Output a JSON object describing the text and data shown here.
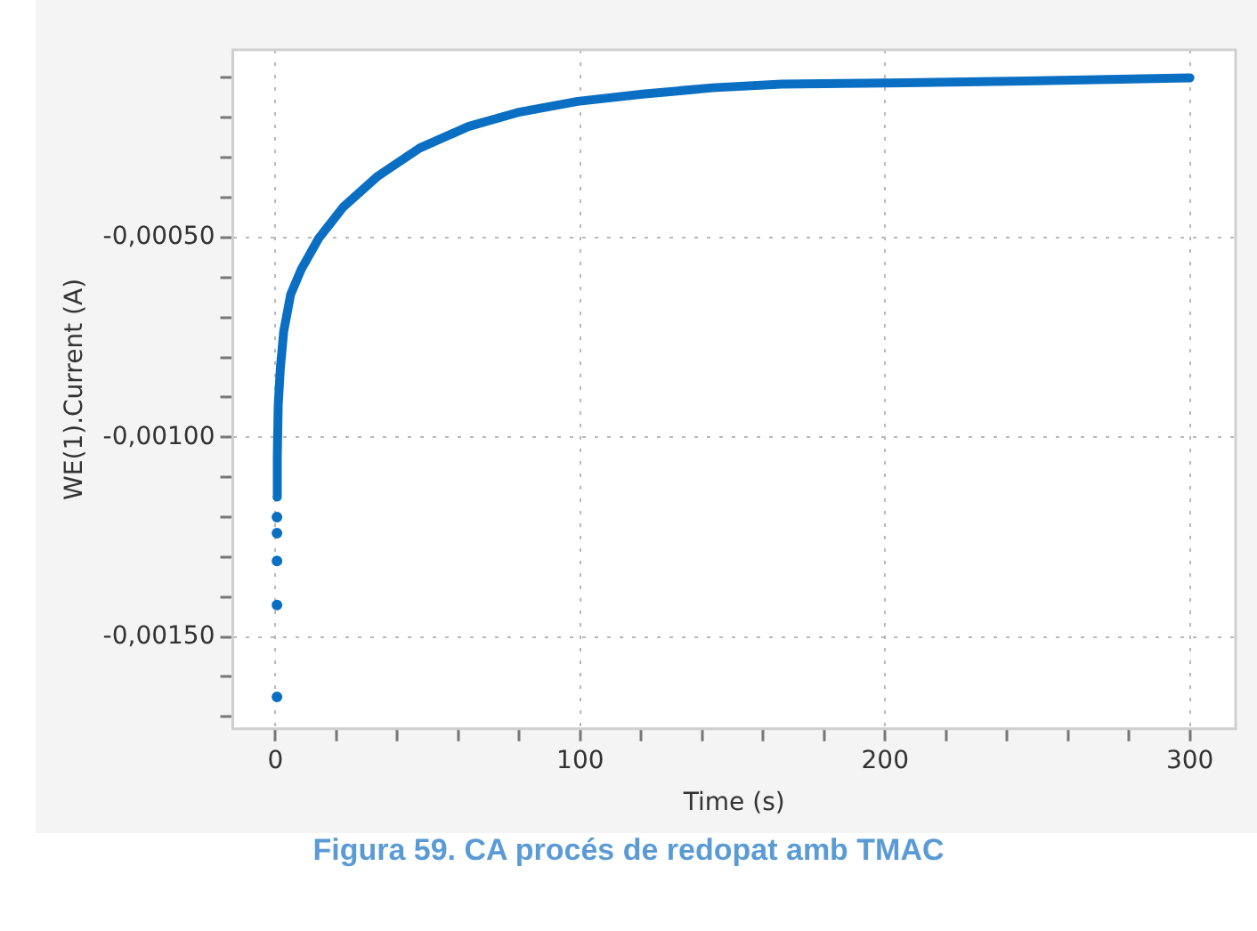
{
  "chart_data": {
    "type": "scatter",
    "xlabel": "Time (s)",
    "ylabel": "WE(1).Current (A)",
    "series": [
      {
        "type": "scatter",
        "color": "#0a6fc2",
        "marker": "circle",
        "x": [
          0.5,
          0.5,
          0.5,
          0.5,
          0.5
        ],
        "values": [
          -0.00165,
          -0.00142,
          -0.00131,
          -0.00124,
          -0.0012
        ]
      },
      {
        "type": "line",
        "color": "#0a6fc2",
        "marker": "none",
        "line_style": "solid",
        "x": [
          0.5,
          0.6,
          0.9,
          1.6,
          2.7,
          5.0,
          8.5,
          14.2,
          22.2,
          33.6,
          47.3,
          63.3,
          79.4,
          99.2,
          120.4,
          143.3,
          166,
          200,
          246,
          300
        ],
        "values": [
          -0.00115,
          -0.00105,
          -0.00092,
          -0.000828,
          -0.000735,
          -0.000642,
          -0.000579,
          -0.000502,
          -0.000424,
          -0.000346,
          -0.000276,
          -0.000222,
          -0.000187,
          -0.000159,
          -0.000141,
          -0.000125,
          -0.000116,
          -0.000113,
          -0.000108,
          -0.0001
        ]
      }
    ],
    "xlim": [
      -14,
      315
    ],
    "xticks": [
      0,
      {
        "value": 20,
        "label": null
      },
      {
        "value": 40,
        "label": null
      },
      {
        "value": 60,
        "label": null
      },
      {
        "value": 80,
        "label": null
      },
      100,
      {
        "value": 120,
        "label": null
      },
      {
        "value": 140,
        "label": null
      },
      {
        "value": 160,
        "label": null
      },
      {
        "value": 180,
        "label": null
      },
      200,
      {
        "value": 220,
        "label": null
      },
      {
        "value": 240,
        "label": null
      },
      {
        "value": 260,
        "label": null
      },
      {
        "value": 280,
        "label": null
      },
      300
    ],
    "ylim": [
      -0.00173,
      -3e-05
    ],
    "yticks": [
      {
        "value": -0.0017,
        "label": null
      },
      {
        "value": -0.0016,
        "label": null
      },
      {
        "value": -0.0015,
        "label": "-0,00150"
      },
      {
        "value": -0.0014,
        "label": null
      },
      {
        "value": -0.0013,
        "label": null
      },
      {
        "value": -0.0012,
        "label": null
      },
      {
        "value": -0.0011,
        "label": null
      },
      {
        "value": -0.001,
        "label": "-0,00100"
      },
      {
        "value": -0.0009,
        "label": null
      },
      {
        "value": -0.0008,
        "label": null
      },
      {
        "value": -0.0007,
        "label": null
      },
      {
        "value": -0.0006,
        "label": null
      },
      {
        "value": -0.0005,
        "label": "-0,00050"
      },
      {
        "value": -0.0004,
        "label": null
      },
      {
        "value": -0.0003,
        "label": null
      },
      {
        "value": -0.0002,
        "label": null
      },
      {
        "value": -0.0001,
        "label": null
      }
    ],
    "grid": true,
    "legend": false,
    "annotations": [
      "Figura 59. CA procés de redopat amb TMAC"
    ]
  }
}
